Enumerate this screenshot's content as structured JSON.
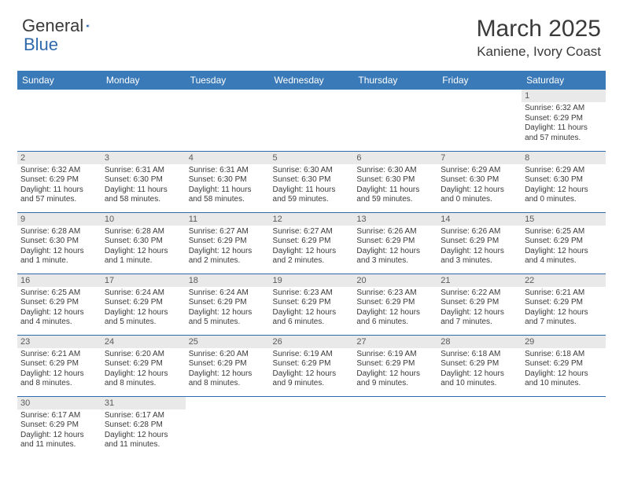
{
  "brand": {
    "text_a": "General",
    "text_b": "Blue"
  },
  "title": "March 2025",
  "location": "Kaniene, Ivory Coast",
  "colors": {
    "header_bg": "#3a7ab8",
    "header_fg": "#ffffff",
    "row_divider": "#2f6aad",
    "daynum_bg": "#e9e9e9",
    "text": "#3a3a3a",
    "brand_blue": "#2f6aad"
  },
  "weekdays": [
    "Sunday",
    "Monday",
    "Tuesday",
    "Wednesday",
    "Thursday",
    "Friday",
    "Saturday"
  ],
  "weeks": [
    [
      {
        "n": "",
        "lines": []
      },
      {
        "n": "",
        "lines": []
      },
      {
        "n": "",
        "lines": []
      },
      {
        "n": "",
        "lines": []
      },
      {
        "n": "",
        "lines": []
      },
      {
        "n": "",
        "lines": []
      },
      {
        "n": "1",
        "lines": [
          "Sunrise: 6:32 AM",
          "Sunset: 6:29 PM",
          "Daylight: 11 hours and 57 minutes."
        ]
      }
    ],
    [
      {
        "n": "2",
        "lines": [
          "Sunrise: 6:32 AM",
          "Sunset: 6:29 PM",
          "Daylight: 11 hours and 57 minutes."
        ]
      },
      {
        "n": "3",
        "lines": [
          "Sunrise: 6:31 AM",
          "Sunset: 6:30 PM",
          "Daylight: 11 hours and 58 minutes."
        ]
      },
      {
        "n": "4",
        "lines": [
          "Sunrise: 6:31 AM",
          "Sunset: 6:30 PM",
          "Daylight: 11 hours and 58 minutes."
        ]
      },
      {
        "n": "5",
        "lines": [
          "Sunrise: 6:30 AM",
          "Sunset: 6:30 PM",
          "Daylight: 11 hours and 59 minutes."
        ]
      },
      {
        "n": "6",
        "lines": [
          "Sunrise: 6:30 AM",
          "Sunset: 6:30 PM",
          "Daylight: 11 hours and 59 minutes."
        ]
      },
      {
        "n": "7",
        "lines": [
          "Sunrise: 6:29 AM",
          "Sunset: 6:30 PM",
          "Daylight: 12 hours and 0 minutes."
        ]
      },
      {
        "n": "8",
        "lines": [
          "Sunrise: 6:29 AM",
          "Sunset: 6:30 PM",
          "Daylight: 12 hours and 0 minutes."
        ]
      }
    ],
    [
      {
        "n": "9",
        "lines": [
          "Sunrise: 6:28 AM",
          "Sunset: 6:30 PM",
          "Daylight: 12 hours and 1 minute."
        ]
      },
      {
        "n": "10",
        "lines": [
          "Sunrise: 6:28 AM",
          "Sunset: 6:30 PM",
          "Daylight: 12 hours and 1 minute."
        ]
      },
      {
        "n": "11",
        "lines": [
          "Sunrise: 6:27 AM",
          "Sunset: 6:29 PM",
          "Daylight: 12 hours and 2 minutes."
        ]
      },
      {
        "n": "12",
        "lines": [
          "Sunrise: 6:27 AM",
          "Sunset: 6:29 PM",
          "Daylight: 12 hours and 2 minutes."
        ]
      },
      {
        "n": "13",
        "lines": [
          "Sunrise: 6:26 AM",
          "Sunset: 6:29 PM",
          "Daylight: 12 hours and 3 minutes."
        ]
      },
      {
        "n": "14",
        "lines": [
          "Sunrise: 6:26 AM",
          "Sunset: 6:29 PM",
          "Daylight: 12 hours and 3 minutes."
        ]
      },
      {
        "n": "15",
        "lines": [
          "Sunrise: 6:25 AM",
          "Sunset: 6:29 PM",
          "Daylight: 12 hours and 4 minutes."
        ]
      }
    ],
    [
      {
        "n": "16",
        "lines": [
          "Sunrise: 6:25 AM",
          "Sunset: 6:29 PM",
          "Daylight: 12 hours and 4 minutes."
        ]
      },
      {
        "n": "17",
        "lines": [
          "Sunrise: 6:24 AM",
          "Sunset: 6:29 PM",
          "Daylight: 12 hours and 5 minutes."
        ]
      },
      {
        "n": "18",
        "lines": [
          "Sunrise: 6:24 AM",
          "Sunset: 6:29 PM",
          "Daylight: 12 hours and 5 minutes."
        ]
      },
      {
        "n": "19",
        "lines": [
          "Sunrise: 6:23 AM",
          "Sunset: 6:29 PM",
          "Daylight: 12 hours and 6 minutes."
        ]
      },
      {
        "n": "20",
        "lines": [
          "Sunrise: 6:23 AM",
          "Sunset: 6:29 PM",
          "Daylight: 12 hours and 6 minutes."
        ]
      },
      {
        "n": "21",
        "lines": [
          "Sunrise: 6:22 AM",
          "Sunset: 6:29 PM",
          "Daylight: 12 hours and 7 minutes."
        ]
      },
      {
        "n": "22",
        "lines": [
          "Sunrise: 6:21 AM",
          "Sunset: 6:29 PM",
          "Daylight: 12 hours and 7 minutes."
        ]
      }
    ],
    [
      {
        "n": "23",
        "lines": [
          "Sunrise: 6:21 AM",
          "Sunset: 6:29 PM",
          "Daylight: 12 hours and 8 minutes."
        ]
      },
      {
        "n": "24",
        "lines": [
          "Sunrise: 6:20 AM",
          "Sunset: 6:29 PM",
          "Daylight: 12 hours and 8 minutes."
        ]
      },
      {
        "n": "25",
        "lines": [
          "Sunrise: 6:20 AM",
          "Sunset: 6:29 PM",
          "Daylight: 12 hours and 8 minutes."
        ]
      },
      {
        "n": "26",
        "lines": [
          "Sunrise: 6:19 AM",
          "Sunset: 6:29 PM",
          "Daylight: 12 hours and 9 minutes."
        ]
      },
      {
        "n": "27",
        "lines": [
          "Sunrise: 6:19 AM",
          "Sunset: 6:29 PM",
          "Daylight: 12 hours and 9 minutes."
        ]
      },
      {
        "n": "28",
        "lines": [
          "Sunrise: 6:18 AM",
          "Sunset: 6:29 PM",
          "Daylight: 12 hours and 10 minutes."
        ]
      },
      {
        "n": "29",
        "lines": [
          "Sunrise: 6:18 AM",
          "Sunset: 6:29 PM",
          "Daylight: 12 hours and 10 minutes."
        ]
      }
    ],
    [
      {
        "n": "30",
        "lines": [
          "Sunrise: 6:17 AM",
          "Sunset: 6:29 PM",
          "Daylight: 12 hours and 11 minutes."
        ]
      },
      {
        "n": "31",
        "lines": [
          "Sunrise: 6:17 AM",
          "Sunset: 6:28 PM",
          "Daylight: 12 hours and 11 minutes."
        ]
      },
      {
        "n": "",
        "lines": []
      },
      {
        "n": "",
        "lines": []
      },
      {
        "n": "",
        "lines": []
      },
      {
        "n": "",
        "lines": []
      },
      {
        "n": "",
        "lines": []
      }
    ]
  ]
}
